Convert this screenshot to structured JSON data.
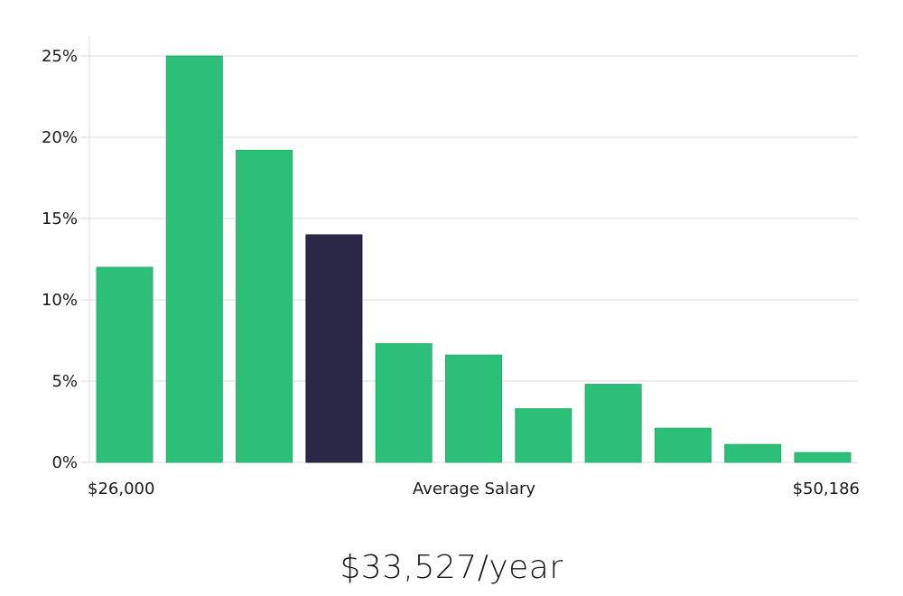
{
  "chart_data": {
    "type": "bar",
    "categories": [
      "1",
      "2",
      "3",
      "4",
      "5",
      "6",
      "7",
      "8",
      "9",
      "10",
      "11"
    ],
    "values": [
      12.0,
      25.0,
      19.2,
      14.0,
      7.3,
      6.6,
      3.3,
      4.8,
      2.1,
      1.1,
      0.6
    ],
    "highlight_index": 3,
    "ylim": [
      0,
      26
    ],
    "yticks": [
      0,
      5,
      10,
      15,
      20,
      25
    ],
    "ytick_labels": [
      "0%",
      "5%",
      "10%",
      "15%",
      "20%",
      "25%"
    ],
    "x_min_label": "$26,000",
    "x_center_label": "Average Salary",
    "x_max_label": "$50,186",
    "grid": true,
    "bar_color": "#2bbf77",
    "highlight_color": "#2a2747",
    "grid_color": "#dedede"
  },
  "salary_summary": "$33,527/year"
}
